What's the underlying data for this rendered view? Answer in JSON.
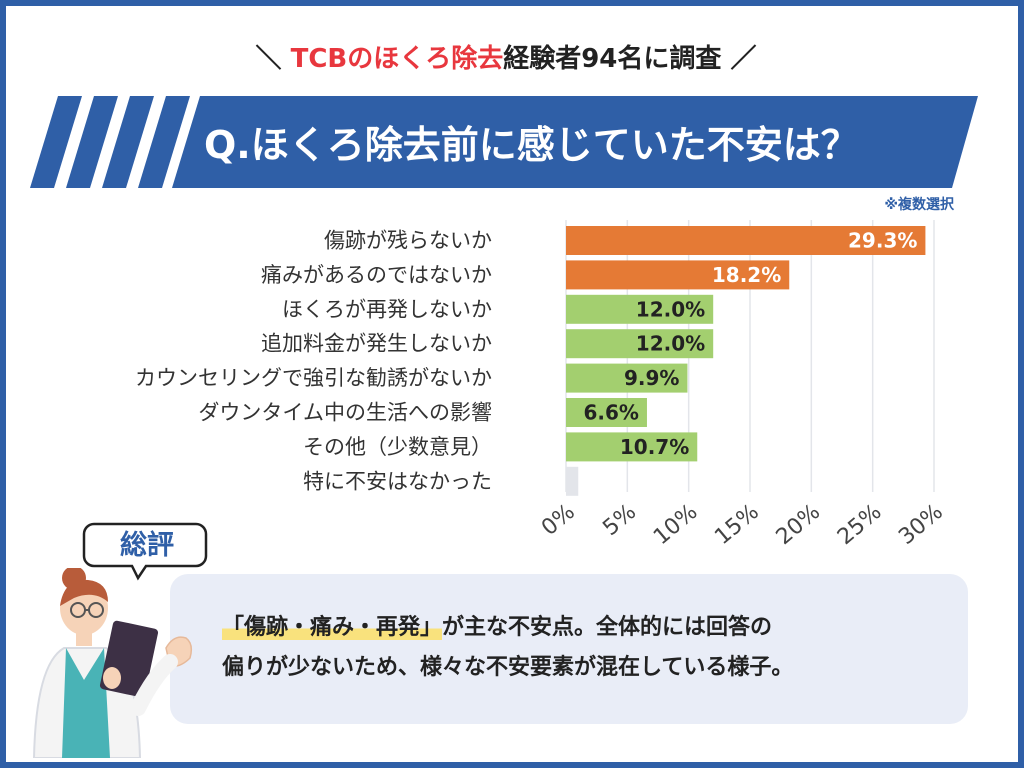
{
  "header": {
    "survey_highlight": "TCBのほくろ除去",
    "survey_rest": "経験者94名に調査",
    "slash_left": "＼",
    "slash_right": "／",
    "question": "Q.ほくろ除去前に感じていた不安は？",
    "note": "※複数選択"
  },
  "chart_data": {
    "type": "bar",
    "orientation": "horizontal",
    "categories": [
      "傷跡が残らないか",
      "痛みがあるのではないか",
      "ほくろが再発しないか",
      "追加料金が発生しないか",
      "カウンセリングで強引な勧誘がないか",
      "ダウンタイム中の生活への影響",
      "その他（少数意見）",
      "特に不安はなかった"
    ],
    "values": [
      29.3,
      18.2,
      12.0,
      12.0,
      9.9,
      6.6,
      10.7,
      1.0
    ],
    "labels": [
      "29.3%",
      "18.2%",
      "12.0%",
      "12.0%",
      "9.9%",
      "6.6%",
      "10.7%",
      ""
    ],
    "bar_colors": [
      "#e57a35",
      "#e57a35",
      "#a3cf6f",
      "#a3cf6f",
      "#a3cf6f",
      "#a3cf6f",
      "#a3cf6f",
      "#e3e5ea"
    ],
    "label_colors": [
      "#ffffff",
      "#ffffff",
      "#222222",
      "#222222",
      "#222222",
      "#222222",
      "#222222",
      "#222222"
    ],
    "xlim": [
      0,
      30
    ],
    "xticks": [
      0,
      5,
      10,
      15,
      20,
      25,
      30
    ],
    "xtick_labels": [
      "0%",
      "5%",
      "10%",
      "15%",
      "20%",
      "25%",
      "30%"
    ],
    "grid": true
  },
  "summary": {
    "title": "総評",
    "highlight": "「傷跡・痛み・再発」",
    "line1_rest": "が主な不安点。全体的には回答の",
    "line2": "偏りが少ないため、様々な不安要素が混在している様子。"
  },
  "colors": {
    "brand_blue": "#2f5fa7",
    "accent_red": "#e8373e",
    "orange": "#e57a35",
    "green": "#a3cf6f"
  }
}
